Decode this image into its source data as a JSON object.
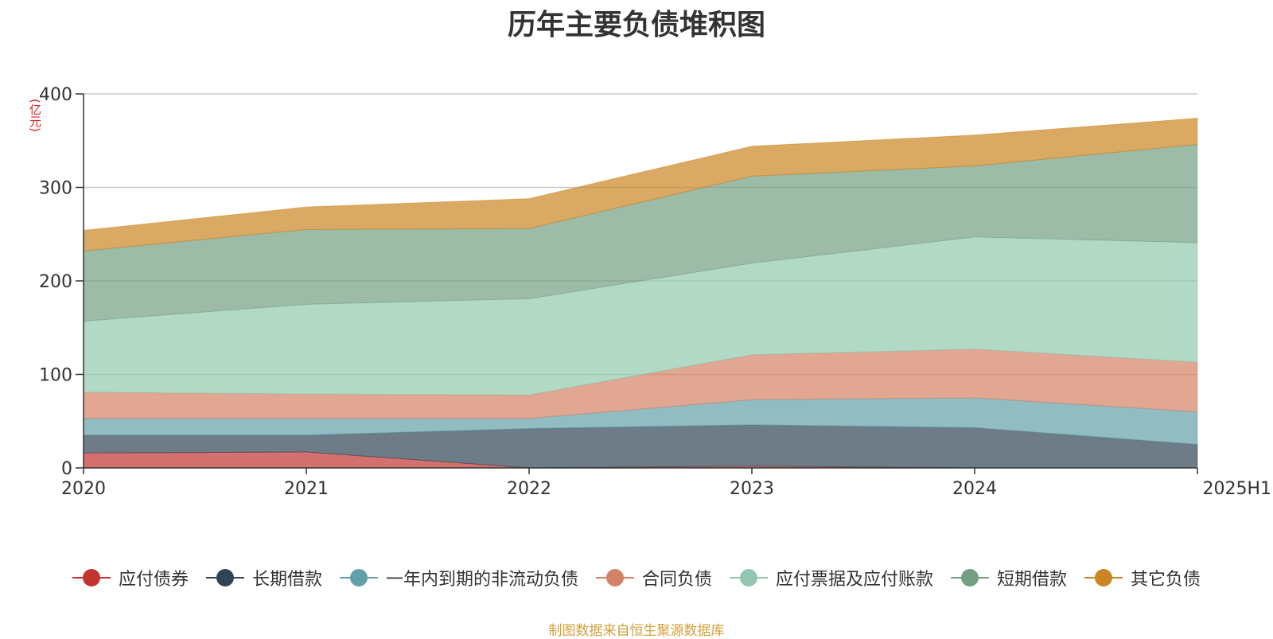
{
  "chart_data": {
    "type": "area",
    "stacked": true,
    "title": "历年主要负债堆积图",
    "ylabel": "(亿元)",
    "xlabel": "",
    "x": [
      "2020",
      "2021",
      "2022",
      "2023",
      "2024",
      "2025H1"
    ],
    "ylim": [
      0,
      400
    ],
    "yticks": [
      0,
      100,
      200,
      300,
      400
    ],
    "grid": true,
    "legend_position": "bottom",
    "series": [
      {
        "name": "应付债券",
        "color": "#c23531",
        "values": [
          16,
          17,
          0,
          2,
          0,
          0
        ]
      },
      {
        "name": "长期借款",
        "color": "#2f4554",
        "values": [
          19,
          18,
          42,
          44,
          43,
          25
        ]
      },
      {
        "name": "一年内到期的非流动负债",
        "color": "#61a0a8",
        "values": [
          18,
          18,
          11,
          27,
          32,
          35
        ]
      },
      {
        "name": "合同负债",
        "color": "#d48265",
        "values": [
          28,
          26,
          25,
          48,
          52,
          53
        ]
      },
      {
        "name": "应付票据及应付账款",
        "color": "#91c7ae",
        "values": [
          76,
          96,
          103,
          98,
          120,
          128
        ]
      },
      {
        "name": "短期借款",
        "color": "#749f83",
        "values": [
          75,
          80,
          75,
          93,
          76,
          105
        ]
      },
      {
        "name": "其它负债",
        "color": "#ca8622",
        "values": [
          22,
          24,
          32,
          32,
          33,
          28
        ]
      }
    ],
    "source": "制图数据来自恒生聚源数据库"
  }
}
